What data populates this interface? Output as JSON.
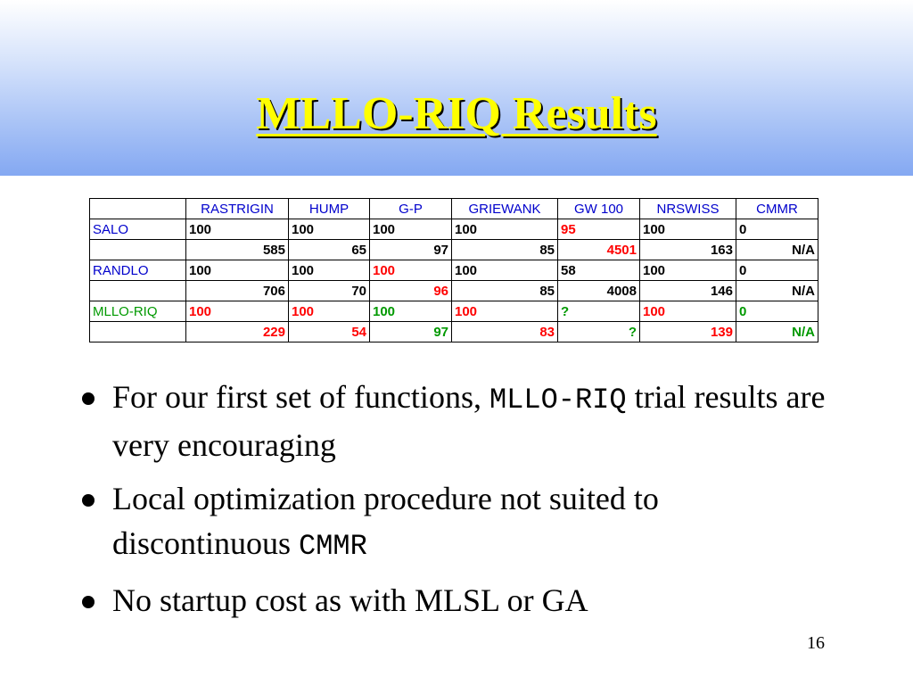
{
  "slide": {
    "title": "MLLO-RIQ Results",
    "page_number": "16"
  },
  "table": {
    "headers": [
      "",
      "RASTRIGIN",
      "HUMP",
      "G-P",
      "GRIEWANK",
      "GW 100",
      "NRSWISS",
      "CMMR"
    ],
    "rows": [
      {
        "label": "SALO",
        "label_color": "#0000cc",
        "kind": "v1",
        "cells": [
          {
            "v": "100",
            "c": "#000000"
          },
          {
            "v": "100",
            "c": "#000000"
          },
          {
            "v": "100",
            "c": "#000000"
          },
          {
            "v": "100",
            "c": "#000000"
          },
          {
            "v": "95",
            "c": "#ff0000"
          },
          {
            "v": "100",
            "c": "#000000"
          },
          {
            "v": "0",
            "c": "#000000"
          }
        ]
      },
      {
        "label": "",
        "label_color": "#000000",
        "kind": "v2",
        "cells": [
          {
            "v": "585",
            "c": "#000000"
          },
          {
            "v": "65",
            "c": "#000000"
          },
          {
            "v": "97",
            "c": "#000000"
          },
          {
            "v": "85",
            "c": "#000000"
          },
          {
            "v": "4501",
            "c": "#ff0000"
          },
          {
            "v": "163",
            "c": "#000000"
          },
          {
            "v": "N/A",
            "c": "#000000"
          }
        ]
      },
      {
        "label": "RANDLO",
        "label_color": "#0000cc",
        "kind": "v1",
        "cells": [
          {
            "v": "100",
            "c": "#000000"
          },
          {
            "v": "100",
            "c": "#000000"
          },
          {
            "v": "100",
            "c": "#ff0000"
          },
          {
            "v": "100",
            "c": "#000000"
          },
          {
            "v": "58",
            "c": "#000000"
          },
          {
            "v": "100",
            "c": "#000000"
          },
          {
            "v": "0",
            "c": "#000000"
          }
        ]
      },
      {
        "label": "",
        "label_color": "#000000",
        "kind": "v2",
        "cells": [
          {
            "v": "706",
            "c": "#000000"
          },
          {
            "v": "70",
            "c": "#000000"
          },
          {
            "v": "96",
            "c": "#ff0000"
          },
          {
            "v": "85",
            "c": "#000000"
          },
          {
            "v": "4008",
            "c": "#000000"
          },
          {
            "v": "146",
            "c": "#000000"
          },
          {
            "v": "N/A",
            "c": "#000000"
          }
        ]
      },
      {
        "label": "MLLO-RIQ",
        "label_color": "#009900",
        "kind": "v1",
        "cells": [
          {
            "v": "100",
            "c": "#ff0000"
          },
          {
            "v": "100",
            "c": "#ff0000"
          },
          {
            "v": "100",
            "c": "#009900"
          },
          {
            "v": "100",
            "c": "#ff0000"
          },
          {
            "v": "?",
            "c": "#009900"
          },
          {
            "v": "100",
            "c": "#ff0000"
          },
          {
            "v": "0",
            "c": "#009900"
          }
        ]
      },
      {
        "label": "",
        "label_color": "#000000",
        "kind": "v2",
        "cells": [
          {
            "v": "229",
            "c": "#ff0000"
          },
          {
            "v": "54",
            "c": "#ff0000"
          },
          {
            "v": "97",
            "c": "#009900"
          },
          {
            "v": "83",
            "c": "#ff0000"
          },
          {
            "v": "?",
            "c": "#009900"
          },
          {
            "v": "139",
            "c": "#ff0000"
          },
          {
            "v": "N/A",
            "c": "#009900"
          }
        ]
      }
    ]
  },
  "bullets": [
    {
      "text_before": "For our first set of functions, ",
      "mono": "MLLO-RIQ",
      "text_after": " trial results are very encouraging"
    },
    {
      "text_before": "Local optimization procedure not suited to discontinuous ",
      "mono": "CMMR",
      "text_after": ""
    },
    {
      "text_before": "No startup cost as with MLSL or GA",
      "mono": "",
      "text_after": ""
    }
  ],
  "colors": {
    "title": "#ffff00",
    "header_gradient_bottom": "#84a8f2",
    "table_header_text": "#0000cc",
    "highlight_red": "#ff0000",
    "highlight_green": "#009900"
  }
}
